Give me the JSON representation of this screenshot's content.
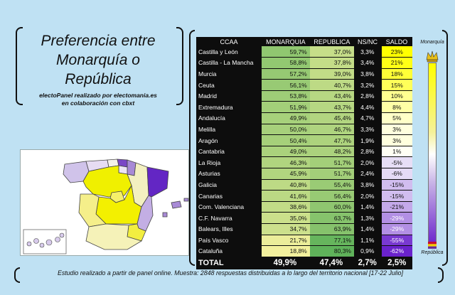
{
  "title": {
    "line1": "Preferencia entre",
    "line2": "Monarquía o República"
  },
  "credits": {
    "line1": "electoPanel realizado por electomania.es",
    "line2": "en colaboración con cbxt"
  },
  "scale": {
    "top_label": "Monarquía",
    "bottom_label": "República"
  },
  "footnote": "Estudio realizado a partir de panel online. Muestra: 2848 respuestas distribuidas a lo largo del territorio nacional [17-22 Julio]",
  "colors": {
    "monarquia_high": "#8ac46a",
    "republica_high": "#5fb25a",
    "saldo_positive": "#ffff00",
    "saldo_negative": "#6a22cc",
    "background": "#bfe1f3"
  },
  "chart_data": {
    "type": "table",
    "columns": [
      "CCAA",
      "MONARQUIA",
      "REPUBLICA",
      "NS/NC",
      "SALDO"
    ],
    "rows": [
      {
        "ccaa": "Castilla y León",
        "monarquia": "59,7%",
        "republica": "37,0%",
        "nsnc": "3,3%",
        "saldo": "23%",
        "saldo_value": 23,
        "mon_value": 59.7,
        "rep_value": 37.0
      },
      {
        "ccaa": "Castilla - La Mancha",
        "monarquia": "58,8%",
        "republica": "37,8%",
        "nsnc": "3,4%",
        "saldo": "21%",
        "saldo_value": 21,
        "mon_value": 58.8,
        "rep_value": 37.8
      },
      {
        "ccaa": "Murcia",
        "monarquia": "57,2%",
        "republica": "39,0%",
        "nsnc": "3,8%",
        "saldo": "18%",
        "saldo_value": 18,
        "mon_value": 57.2,
        "rep_value": 39.0
      },
      {
        "ccaa": "Ceuta",
        "monarquia": "56,1%",
        "republica": "40,7%",
        "nsnc": "3,2%",
        "saldo": "15%",
        "saldo_value": 15,
        "mon_value": 56.1,
        "rep_value": 40.7
      },
      {
        "ccaa": "Madrid",
        "monarquia": "53,8%",
        "republica": "43,4%",
        "nsnc": "2,8%",
        "saldo": "10%",
        "saldo_value": 10,
        "mon_value": 53.8,
        "rep_value": 43.4
      },
      {
        "ccaa": "Extremadura",
        "monarquia": "51,9%",
        "republica": "43,7%",
        "nsnc": "4,4%",
        "saldo": "8%",
        "saldo_value": 8,
        "mon_value": 51.9,
        "rep_value": 43.7
      },
      {
        "ccaa": "Andalucía",
        "monarquia": "49,9%",
        "republica": "45,4%",
        "nsnc": "4,7%",
        "saldo": "5%",
        "saldo_value": 5,
        "mon_value": 49.9,
        "rep_value": 45.4
      },
      {
        "ccaa": "Melilla",
        "monarquia": "50,0%",
        "republica": "46,7%",
        "nsnc": "3,3%",
        "saldo": "3%",
        "saldo_value": 3,
        "mon_value": 50.0,
        "rep_value": 46.7
      },
      {
        "ccaa": "Aragón",
        "monarquia": "50,4%",
        "republica": "47,7%",
        "nsnc": "1,9%",
        "saldo": "3%",
        "saldo_value": 3,
        "mon_value": 50.4,
        "rep_value": 47.7
      },
      {
        "ccaa": "Cantabria",
        "monarquia": "49,0%",
        "republica": "48,2%",
        "nsnc": "2,8%",
        "saldo": "1%",
        "saldo_value": 1,
        "mon_value": 49.0,
        "rep_value": 48.2
      },
      {
        "ccaa": "La Rioja",
        "monarquia": "46,3%",
        "republica": "51,7%",
        "nsnc": "2,0%",
        "saldo": "-5%",
        "saldo_value": -5,
        "mon_value": 46.3,
        "rep_value": 51.7
      },
      {
        "ccaa": "Asturias",
        "monarquia": "45,9%",
        "republica": "51,7%",
        "nsnc": "2,4%",
        "saldo": "-6%",
        "saldo_value": -6,
        "mon_value": 45.9,
        "rep_value": 51.7
      },
      {
        "ccaa": "Galicia",
        "monarquia": "40,8%",
        "republica": "55,4%",
        "nsnc": "3,8%",
        "saldo": "-15%",
        "saldo_value": -15,
        "mon_value": 40.8,
        "rep_value": 55.4
      },
      {
        "ccaa": "Canarias",
        "monarquia": "41,6%",
        "republica": "56,4%",
        "nsnc": "2,0%",
        "saldo": "-15%",
        "saldo_value": -15,
        "mon_value": 41.6,
        "rep_value": 56.4
      },
      {
        "ccaa": "Com. Valenciana",
        "monarquia": "38,6%",
        "republica": "60,0%",
        "nsnc": "1,4%",
        "saldo": "-21%",
        "saldo_value": -21,
        "mon_value": 38.6,
        "rep_value": 60.0
      },
      {
        "ccaa": "C.F. Navarra",
        "monarquia": "35,0%",
        "republica": "63,7%",
        "nsnc": "1,3%",
        "saldo": "-29%",
        "saldo_value": -29,
        "mon_value": 35.0,
        "rep_value": 63.7
      },
      {
        "ccaa": "Balears, Illes",
        "monarquia": "34,7%",
        "republica": "63,9%",
        "nsnc": "1,4%",
        "saldo": "-29%",
        "saldo_value": -29,
        "mon_value": 34.7,
        "rep_value": 63.9
      },
      {
        "ccaa": "País Vasco",
        "monarquia": "21,7%",
        "republica": "77,1%",
        "nsnc": "1,1%",
        "saldo": "-55%",
        "saldo_value": -55,
        "mon_value": 21.7,
        "rep_value": 77.1
      },
      {
        "ccaa": "Cataluña",
        "monarquia": "18,8%",
        "republica": "80,3%",
        "nsnc": "0,9%",
        "saldo": "-62%",
        "saldo_value": -62,
        "mon_value": 18.8,
        "rep_value": 80.3
      }
    ],
    "total": {
      "label": "TOTAL",
      "monarquia": "49,9%",
      "republica": "47,4%",
      "nsnc": "2,7%",
      "saldo": "2,5%"
    }
  }
}
